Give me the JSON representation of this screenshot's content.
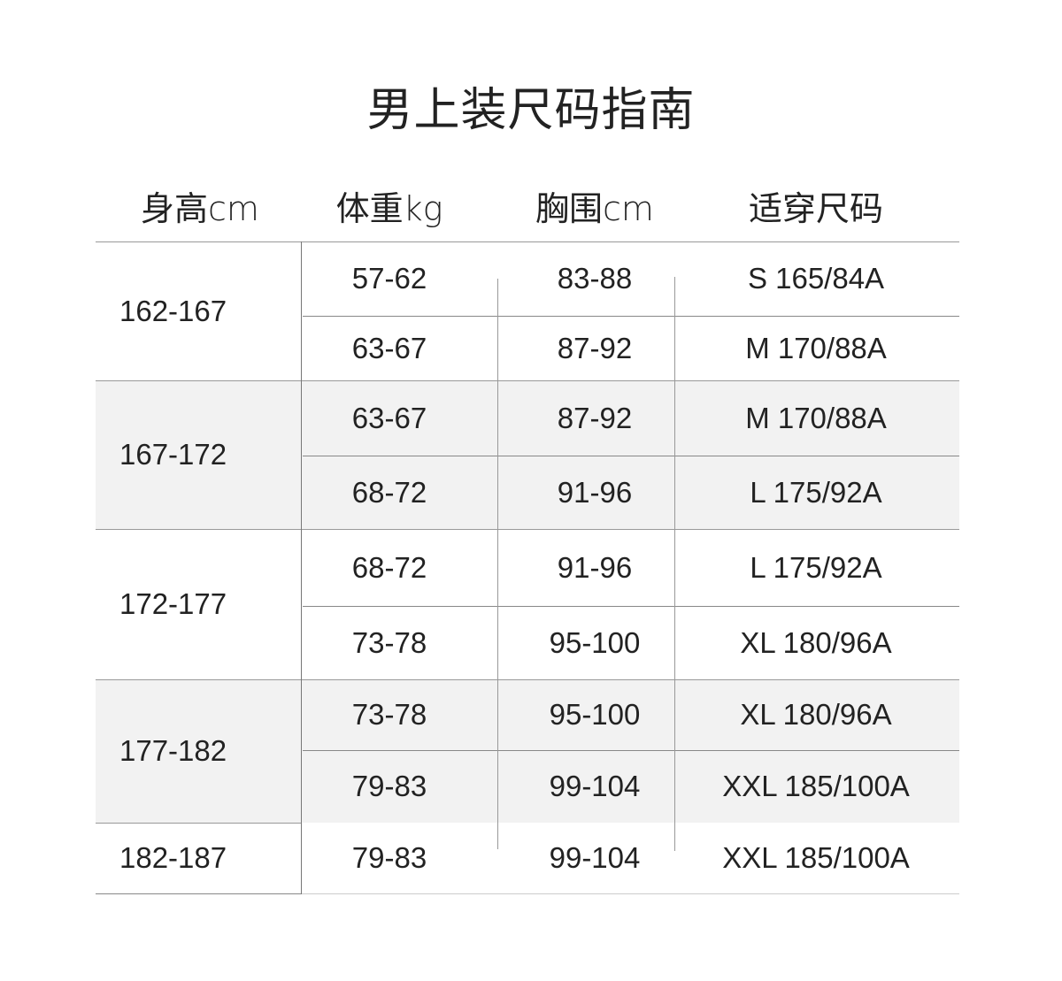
{
  "title": "男上装尺码指南",
  "headers": [
    "身高cm",
    "体重kg",
    "胸围cm",
    "适穿尺码"
  ],
  "shade_color": "#f2f2f2",
  "groups": [
    {
      "height": "162-167",
      "shaded": false,
      "rows": [
        {
          "weight": "57-62",
          "chest": "83-88",
          "size": "S 165/84A"
        },
        {
          "weight": "63-67",
          "chest": "87-92",
          "size": "M 170/88A"
        }
      ]
    },
    {
      "height": "167-172",
      "shaded": true,
      "rows": [
        {
          "weight": "63-67",
          "chest": "87-92",
          "size": "M 170/88A"
        },
        {
          "weight": "68-72",
          "chest": "91-96",
          "size": "L 175/92A"
        }
      ]
    },
    {
      "height": "172-177",
      "shaded": false,
      "rows": [
        {
          "weight": "68-72",
          "chest": "91-96",
          "size": "L 175/92A"
        },
        {
          "weight": "73-78",
          "chest": "95-100",
          "size": "XL 180/96A"
        }
      ]
    },
    {
      "height": "177-182",
      "shaded": true,
      "rows": [
        {
          "weight": "73-78",
          "chest": "95-100",
          "size": "XL 180/96A"
        },
        {
          "weight": "79-83",
          "chest": "99-104",
          "size": "XXL 185/100A"
        }
      ]
    },
    {
      "height": "182-187",
      "shaded": false,
      "rows": [
        {
          "weight": "79-83",
          "chest": "99-104",
          "size": "XXL 185/100A"
        }
      ]
    }
  ]
}
